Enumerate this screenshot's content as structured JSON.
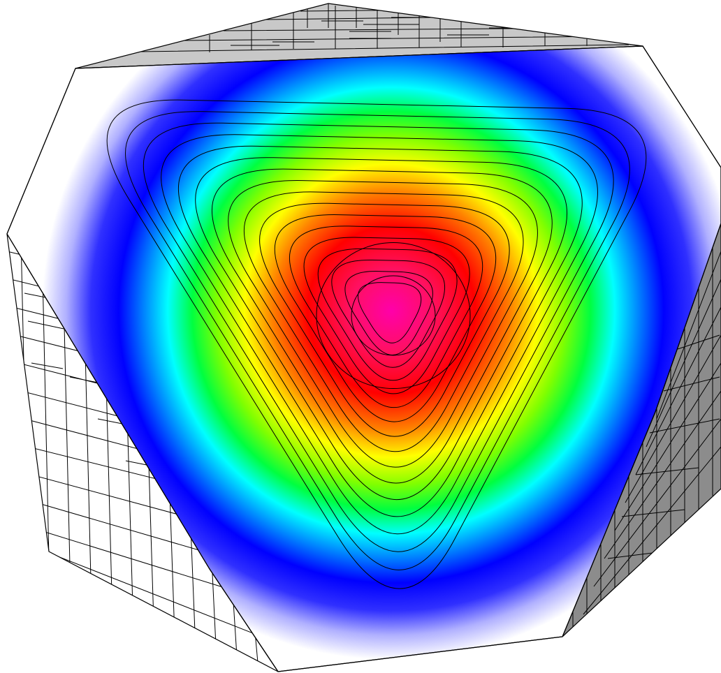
{
  "figure": {
    "subject": "cube-slice-contour-visualization",
    "colors": {
      "background": "#ffffff",
      "top_face": "#c8c8c8",
      "left_face": "#ffffff",
      "right_face": "#8c8c8c",
      "mesh_lines": "#000000",
      "contour_lines": "#000000"
    },
    "colormap": [
      "#ffffff",
      "#0000ff",
      "#00ffff",
      "#00ff00",
      "#ffff00",
      "#ff8000",
      "#ff0000",
      "#ff00aa"
    ],
    "contour_count": 17
  }
}
